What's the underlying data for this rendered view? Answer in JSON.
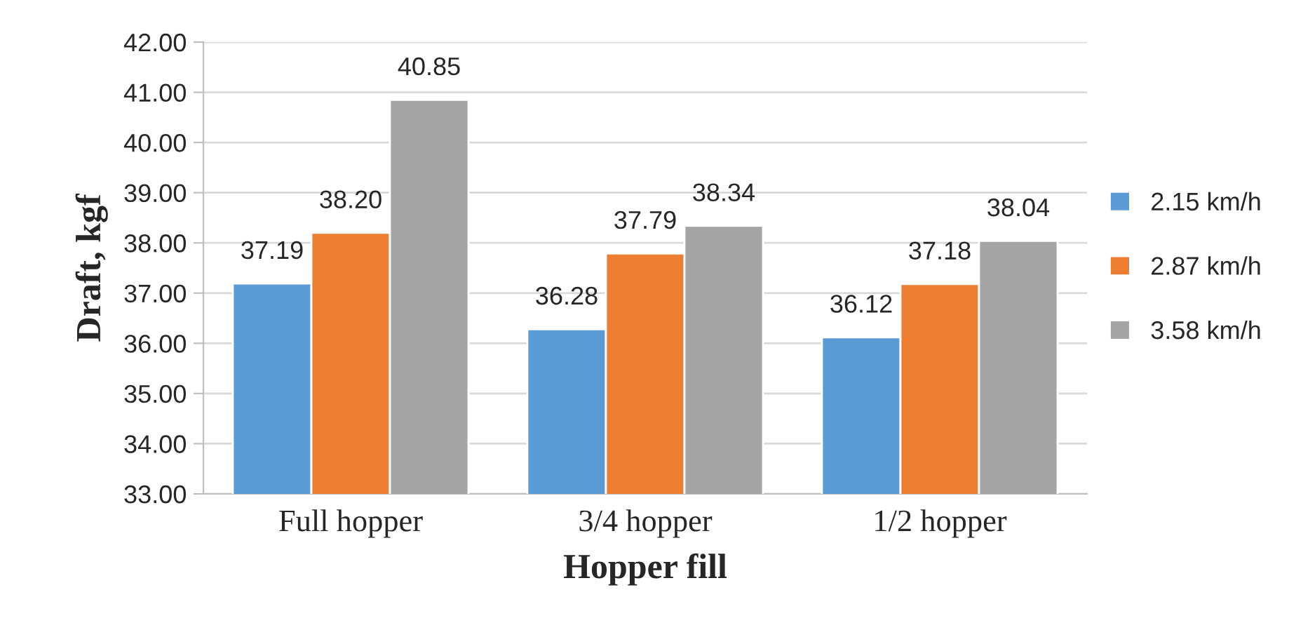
{
  "chart_data": {
    "type": "bar",
    "xlabel": "Hopper fill",
    "ylabel": "Draft, kgf",
    "categories": [
      "Full hopper",
      "3/4 hopper",
      "1/2 hopper"
    ],
    "series": [
      {
        "name": "2.15 km/h",
        "color": "#5b9bd5",
        "values": [
          37.19,
          36.28,
          36.12
        ],
        "value_labels": [
          "37.19",
          "36.28",
          "36.12"
        ]
      },
      {
        "name": "2.87 km/h",
        "color": "#ed7d31",
        "values": [
          38.2,
          37.79,
          37.18
        ],
        "value_labels": [
          "38.20",
          "37.79",
          "37.18"
        ]
      },
      {
        "name": "3.58 km/h",
        "color": "#a5a5a5",
        "values": [
          40.85,
          38.34,
          38.04
        ],
        "value_labels": [
          "40.85",
          "38.34",
          "38.04"
        ]
      }
    ],
    "ylim": [
      33,
      42
    ],
    "yticks": [
      {
        "value": 33,
        "label": "33.00"
      },
      {
        "value": 34,
        "label": "34.00"
      },
      {
        "value": 35,
        "label": "35.00"
      },
      {
        "value": 36,
        "label": "36.00"
      },
      {
        "value": 37,
        "label": "37.00"
      },
      {
        "value": 38,
        "label": "38.00"
      },
      {
        "value": 39,
        "label": "39.00"
      },
      {
        "value": 40,
        "label": "40.00"
      },
      {
        "value": 41,
        "label": "41.00"
      },
      {
        "value": 42,
        "label": "42.00"
      }
    ],
    "grid": "y",
    "legend": "right"
  }
}
